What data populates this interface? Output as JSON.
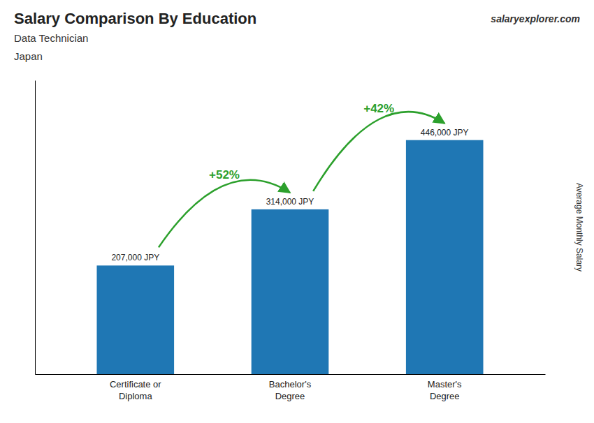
{
  "chart_data": {
    "type": "bar",
    "title": "Salary Comparison By Education",
    "subtitle": "Data Technician",
    "annotations": [
      {
        "text": "Japan"
      },
      {
        "text": "salaryexplorer.com"
      },
      {
        "text": "+52%",
        "between": [
          0,
          1
        ]
      },
      {
        "text": "+42%",
        "between": [
          1,
          2
        ]
      }
    ],
    "ylabel": "Average Monthly Salary",
    "categories": [
      "Certificate or\nDiploma",
      "Bachelor's\nDegree",
      "Master's\nDegree"
    ],
    "values": [
      207000,
      314000,
      446000
    ],
    "value_labels": [
      "207,000 JPY",
      "314,000 JPY",
      "446,000 JPY"
    ],
    "data_labels": true,
    "ylim": [
      0,
      560000
    ],
    "tick_labels": "x",
    "grid": false
  }
}
